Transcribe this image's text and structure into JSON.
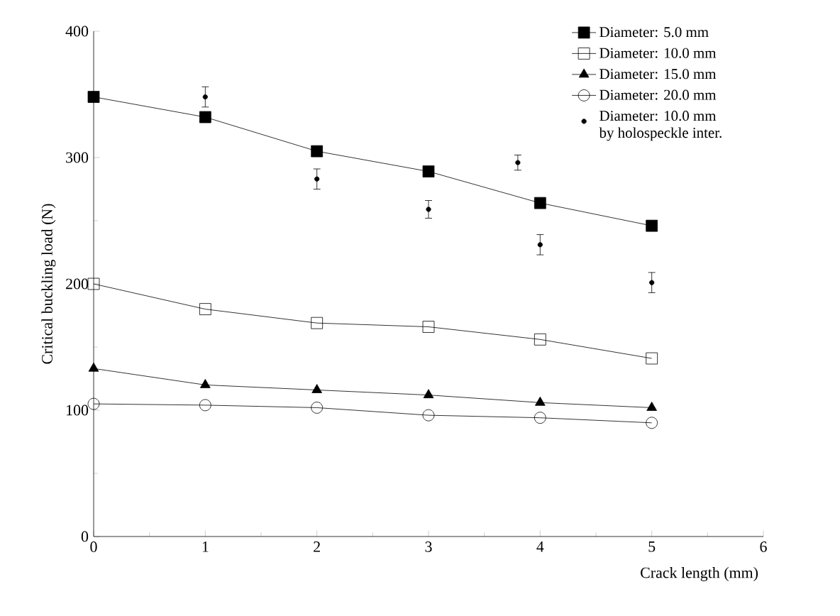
{
  "chart_data": {
    "type": "line",
    "xlabel": "Crack length (mm)",
    "ylabel": "Critical buckling load (N)",
    "xlim": [
      0,
      6
    ],
    "ylim": [
      0,
      400
    ],
    "xticks": [
      0,
      1,
      2,
      3,
      4,
      5,
      6
    ],
    "yticks": [
      0,
      100,
      200,
      300,
      400
    ],
    "grid": false,
    "legend": "top right",
    "series": [
      {
        "name": "Diameter:  5.0 mm",
        "color": "#000000",
        "marker": "square",
        "x": [
          0,
          1,
          2,
          3,
          4,
          5
        ],
        "values": [
          348,
          332,
          305,
          289,
          264,
          246
        ]
      },
      {
        "name": "Diameter: 10.0 mm",
        "color": "#000000",
        "marker": "square_open",
        "x": [
          0,
          1,
          2,
          3,
          4,
          5
        ],
        "values": [
          200,
          180,
          169,
          166,
          156,
          141
        ]
      },
      {
        "name": "Diameter: 15.0 mm",
        "color": "#000000",
        "marker": "triangle",
        "x": [
          0,
          1,
          2,
          3,
          4,
          5
        ],
        "values": [
          133,
          120,
          116,
          112,
          106,
          102
        ]
      },
      {
        "name": "Diameter: 20.0 mm",
        "color": "#000000",
        "marker": "circle_open",
        "x": [
          0,
          1,
          2,
          3,
          4,
          5
        ],
        "values": [
          105,
          104,
          102,
          96,
          94,
          90
        ]
      },
      {
        "name": "Diameter: 10.0 mm\nby holospeckle inter.",
        "color": "#000000",
        "type": "scatter",
        "marker": "circle",
        "x": [
          1,
          2,
          3,
          3.8,
          4,
          5
        ],
        "values": [
          348,
          283,
          259,
          296,
          231,
          201
        ],
        "errors": [
          8,
          8,
          7,
          6,
          8,
          8
        ]
      }
    ]
  }
}
